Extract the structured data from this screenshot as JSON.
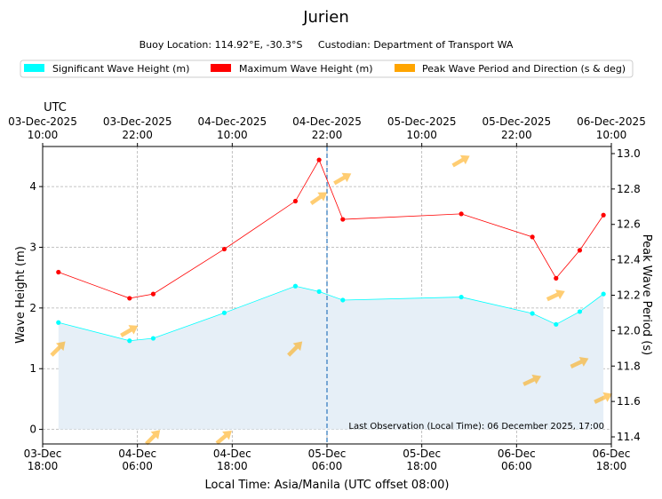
{
  "title": "Jurien",
  "subtitle": "Buoy Location: 114.92°E, -30.3°S     Custodian: Department of Transport WA",
  "legend": [
    {
      "label": "Significant Wave Height (m)",
      "color": "#00ffff"
    },
    {
      "label": "Maximum Wave Height (m)",
      "color": "#ff0000"
    },
    {
      "label": "Peak Wave Period and Direction (s & deg)",
      "color": "#ffa500"
    }
  ],
  "utc_label": "UTC",
  "annotation": "Last Observation (Local Time): 06 December 2025, 17:00",
  "chart_data": {
    "type": "line",
    "title": "Jurien",
    "xlabel": "Local Time: Asia/Manila (UTC offset 08:00)",
    "ylabel": "Wave Height (m)",
    "y2label": "Peak Wave Period (s)",
    "x_unit": "hours since 03-Dec 18:00 local",
    "xlim": [
      0,
      72
    ],
    "ylim": [
      -0.24,
      4.66
    ],
    "y2lim": [
      11.36,
      13.04
    ],
    "y_ticks": [
      0,
      1,
      2,
      3,
      4
    ],
    "y2_ticks": [
      11.4,
      11.6,
      11.8,
      12.0,
      12.2,
      12.4,
      12.6,
      12.8,
      13.0
    ],
    "y2_tick_labels": [
      "11.4",
      "11.6",
      "11.8",
      "12.0",
      "12.2",
      "12.4",
      "12.6",
      "12.8",
      "13.0"
    ],
    "x_ticks": [
      0,
      12,
      24,
      36,
      48,
      60,
      72
    ],
    "x_tick_labels": [
      [
        "03-Dec",
        "18:00"
      ],
      [
        "04-Dec",
        "06:00"
      ],
      [
        "04-Dec",
        "18:00"
      ],
      [
        "05-Dec",
        "06:00"
      ],
      [
        "05-Dec",
        "18:00"
      ],
      [
        "06-Dec",
        "06:00"
      ],
      [
        "06-Dec",
        "18:00"
      ]
    ],
    "top_tick_labels": [
      [
        "03-Dec-2025",
        "10:00"
      ],
      [
        "03-Dec-2025",
        "22:00"
      ],
      [
        "04-Dec-2025",
        "10:00"
      ],
      [
        "04-Dec-2025",
        "22:00"
      ],
      [
        "05-Dec-2025",
        "10:00"
      ],
      [
        "05-Dec-2025",
        "22:00"
      ],
      [
        "06-Dec-2025",
        "10:00"
      ]
    ],
    "current_time_x": 36,
    "series": [
      {
        "name": "Significant Wave Height (m)",
        "color": "#00ffff",
        "x": [
          2,
          11,
          14,
          23,
          32,
          35,
          38,
          53,
          62,
          65,
          68,
          71
        ],
        "values": [
          1.76,
          1.46,
          1.5,
          1.92,
          2.36,
          2.27,
          2.13,
          2.18,
          1.91,
          1.73,
          1.94,
          2.23
        ]
      },
      {
        "name": "Maximum Wave Height (m)",
        "color": "#ff0000",
        "x": [
          2,
          11,
          14,
          23,
          32,
          35,
          38,
          53,
          62,
          65,
          68,
          71
        ],
        "values": [
          2.59,
          2.16,
          2.23,
          2.97,
          3.76,
          4.44,
          3.46,
          3.55,
          3.17,
          2.49,
          2.95,
          3.53
        ]
      }
    ],
    "peak_period_direction": {
      "name": "Peak Wave Period and Direction (s & deg)",
      "color": "#ffa500",
      "x": [
        2,
        11,
        14,
        23,
        32,
        35,
        38,
        53,
        62,
        65,
        68,
        71
      ],
      "period_s": [
        11.9,
        12.0,
        11.4,
        11.4,
        11.9,
        12.75,
        12.86,
        12.96,
        11.72,
        12.2,
        11.82,
        11.62
      ],
      "direction_deg": [
        225,
        240,
        225,
        230,
        225,
        235,
        240,
        240,
        245,
        245,
        245,
        245
      ]
    }
  }
}
